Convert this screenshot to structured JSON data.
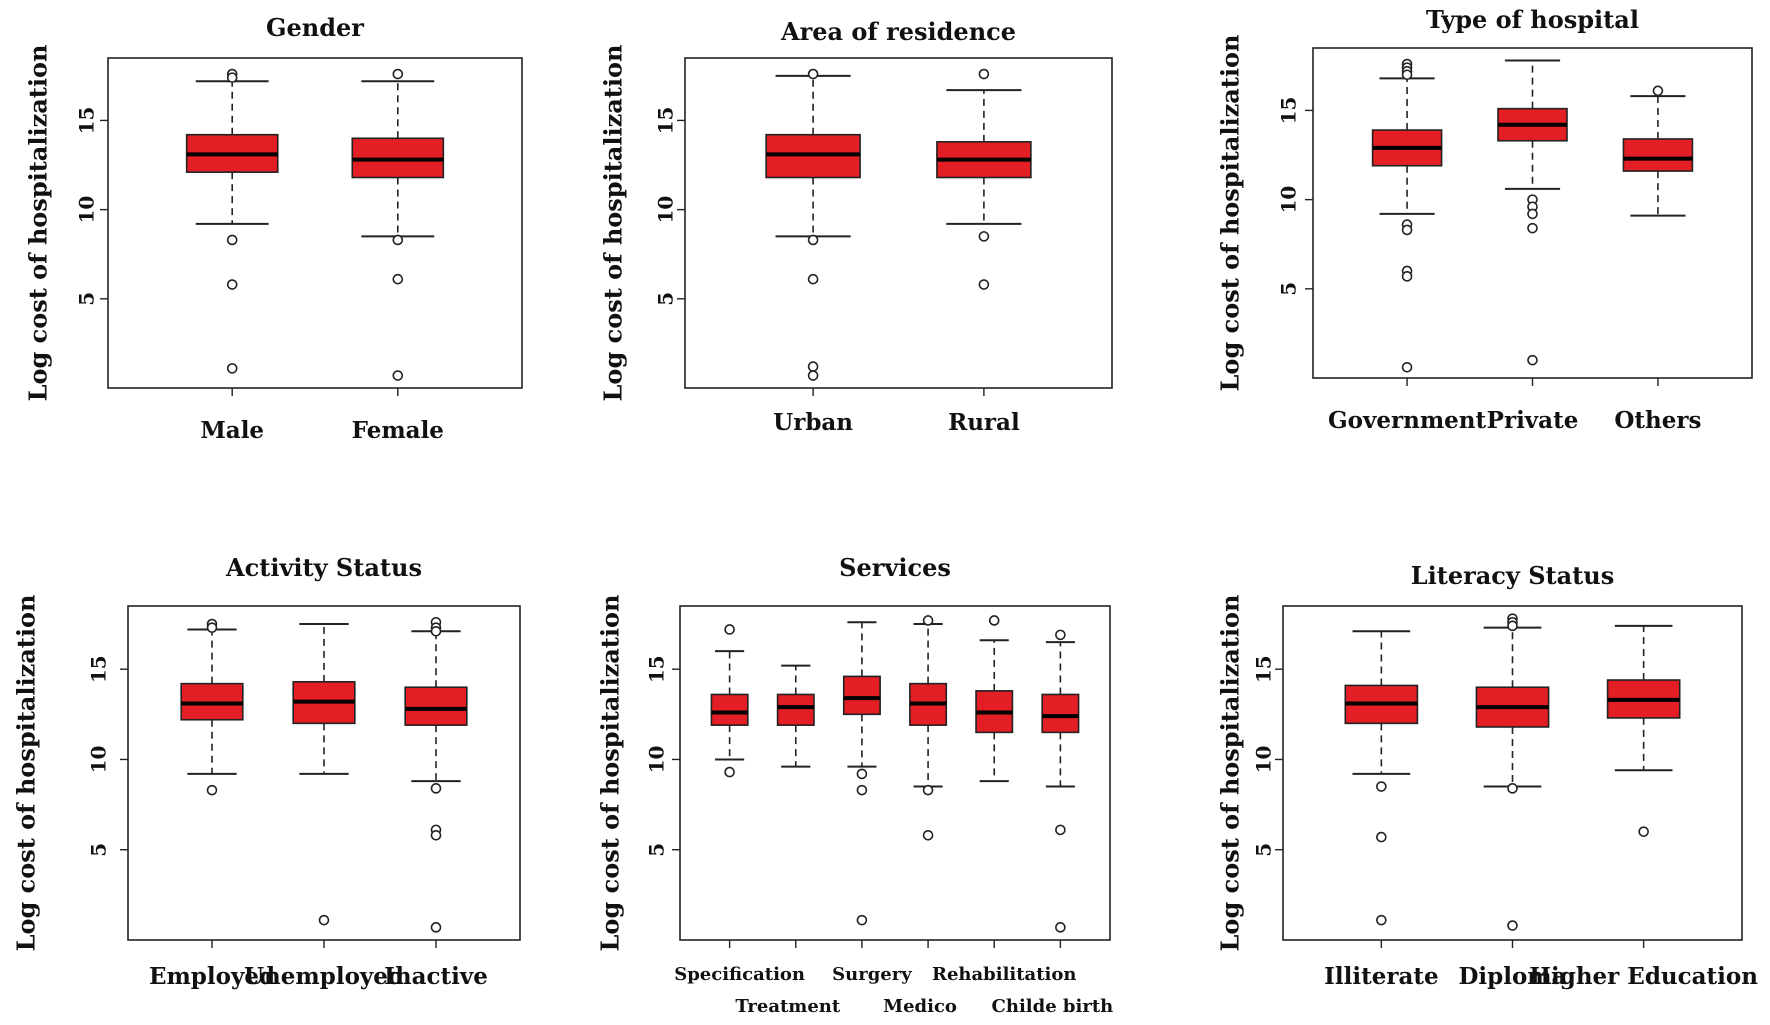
{
  "box_color": "#e31e24",
  "chart_data": [
    {
      "type": "box",
      "title": "Gender",
      "ylabel": "Log cost of hospitalization",
      "ylim": [
        0,
        18.5
      ],
      "yticks": [
        "5",
        "10",
        "15"
      ],
      "categories": [
        "Male",
        "Female"
      ],
      "boxes": [
        {
          "whisker_low": 9.2,
          "q1": 12.1,
          "median": 13.1,
          "q3": 14.2,
          "whisker_high": 17.2,
          "outliers": [
            17.6,
            17.4,
            8.3,
            5.8,
            1.1
          ]
        },
        {
          "whisker_low": 8.5,
          "q1": 11.8,
          "median": 12.8,
          "q3": 14.0,
          "whisker_high": 17.2,
          "outliers": [
            17.6,
            8.3,
            6.1,
            0.7
          ]
        }
      ]
    },
    {
      "type": "box",
      "title": "Area of residence",
      "ylabel": "Log cost of hospitalization",
      "ylim": [
        0,
        18.5
      ],
      "yticks": [
        "5",
        "10",
        "15"
      ],
      "categories": [
        "Urban",
        "Rural"
      ],
      "boxes": [
        {
          "whisker_low": 8.5,
          "q1": 11.8,
          "median": 13.1,
          "q3": 14.2,
          "whisker_high": 17.5,
          "outliers": [
            17.6,
            8.3,
            6.1,
            1.2,
            0.7
          ]
        },
        {
          "whisker_low": 9.2,
          "q1": 11.8,
          "median": 12.8,
          "q3": 13.8,
          "whisker_high": 16.7,
          "outliers": [
            17.6,
            8.5,
            5.8
          ]
        }
      ]
    },
    {
      "type": "box",
      "title": "Type of hospital",
      "ylabel": "Log cost of hospitalization",
      "ylim": [
        0,
        18.5
      ],
      "yticks": [
        "5",
        "10",
        "15"
      ],
      "categories": [
        "Government",
        "Private",
        "Others"
      ],
      "boxes": [
        {
          "whisker_low": 9.2,
          "q1": 11.9,
          "median": 12.9,
          "q3": 13.9,
          "whisker_high": 16.8,
          "outliers": [
            17.6,
            17.4,
            17.2,
            17.0,
            8.6,
            8.3,
            6.0,
            5.7,
            0.6
          ]
        },
        {
          "whisker_low": 10.6,
          "q1": 13.3,
          "median": 14.2,
          "q3": 15.1,
          "whisker_high": 17.8,
          "outliers": [
            10.0,
            9.6,
            9.2,
            8.4,
            1.0
          ]
        },
        {
          "whisker_low": 9.1,
          "q1": 11.6,
          "median": 12.3,
          "q3": 13.4,
          "whisker_high": 15.8,
          "outliers": [
            16.1
          ]
        }
      ]
    },
    {
      "type": "box",
      "title": "Activity Status",
      "ylabel": "Log cost of hospitalization",
      "ylim": [
        0,
        18.5
      ],
      "yticks": [
        "5",
        "10",
        "15"
      ],
      "categories": [
        "Employed",
        "Unemployed",
        "Inactive"
      ],
      "boxes": [
        {
          "whisker_low": 9.2,
          "q1": 12.2,
          "median": 13.1,
          "q3": 14.2,
          "whisker_high": 17.2,
          "outliers": [
            17.5,
            17.3,
            8.3
          ]
        },
        {
          "whisker_low": 9.2,
          "q1": 12.0,
          "median": 13.2,
          "q3": 14.3,
          "whisker_high": 17.5,
          "outliers": [
            1.1
          ]
        },
        {
          "whisker_low": 8.8,
          "q1": 11.9,
          "median": 12.8,
          "q3": 14.0,
          "whisker_high": 17.1,
          "outliers": [
            17.6,
            17.3,
            17.1,
            8.4,
            6.1,
            5.8,
            0.7
          ]
        }
      ]
    },
    {
      "type": "box",
      "title": "Services",
      "ylabel": "Log cost of hospitalization",
      "ylim": [
        0,
        18.5
      ],
      "yticks": [
        "5",
        "10",
        "15"
      ],
      "categories": [
        "Specification",
        "Treatment",
        "Surgery",
        "Medico",
        "Rehabilitation",
        "Childe birth"
      ],
      "boxes": [
        {
          "whisker_low": 10.0,
          "q1": 11.9,
          "median": 12.6,
          "q3": 13.6,
          "whisker_high": 16.0,
          "outliers": [
            17.2,
            9.3
          ]
        },
        {
          "whisker_low": 9.6,
          "q1": 11.9,
          "median": 12.9,
          "q3": 13.6,
          "whisker_high": 15.2,
          "outliers": []
        },
        {
          "whisker_low": 9.6,
          "q1": 12.5,
          "median": 13.4,
          "q3": 14.6,
          "whisker_high": 17.6,
          "outliers": [
            9.2,
            8.3,
            1.1
          ]
        },
        {
          "whisker_low": 8.5,
          "q1": 11.9,
          "median": 13.1,
          "q3": 14.2,
          "whisker_high": 17.5,
          "outliers": [
            17.7,
            8.3,
            5.8
          ]
        },
        {
          "whisker_low": 8.8,
          "q1": 11.5,
          "median": 12.6,
          "q3": 13.8,
          "whisker_high": 16.6,
          "outliers": [
            17.7
          ]
        },
        {
          "whisker_low": 8.5,
          "q1": 11.5,
          "median": 12.4,
          "q3": 13.6,
          "whisker_high": 16.5,
          "outliers": [
            16.9,
            6.1,
            0.7
          ]
        }
      ]
    },
    {
      "type": "box",
      "title": "Literacy Status",
      "ylabel": "Log cost of hospitalization",
      "ylim": [
        0,
        18.5
      ],
      "yticks": [
        "5",
        "10",
        "15"
      ],
      "categories": [
        "Illiterate",
        "Diploma",
        "Higher Education"
      ],
      "boxes": [
        {
          "whisker_low": 9.2,
          "q1": 12.0,
          "median": 13.1,
          "q3": 14.1,
          "whisker_high": 17.1,
          "outliers": [
            8.5,
            5.7,
            1.1
          ]
        },
        {
          "whisker_low": 8.5,
          "q1": 11.8,
          "median": 12.9,
          "q3": 14.0,
          "whisker_high": 17.3,
          "outliers": [
            17.8,
            17.6,
            17.4,
            8.4,
            0.8
          ]
        },
        {
          "whisker_low": 9.4,
          "q1": 12.3,
          "median": 13.3,
          "q3": 14.4,
          "whisker_high": 17.4,
          "outliers": [
            6.0
          ]
        }
      ]
    }
  ]
}
